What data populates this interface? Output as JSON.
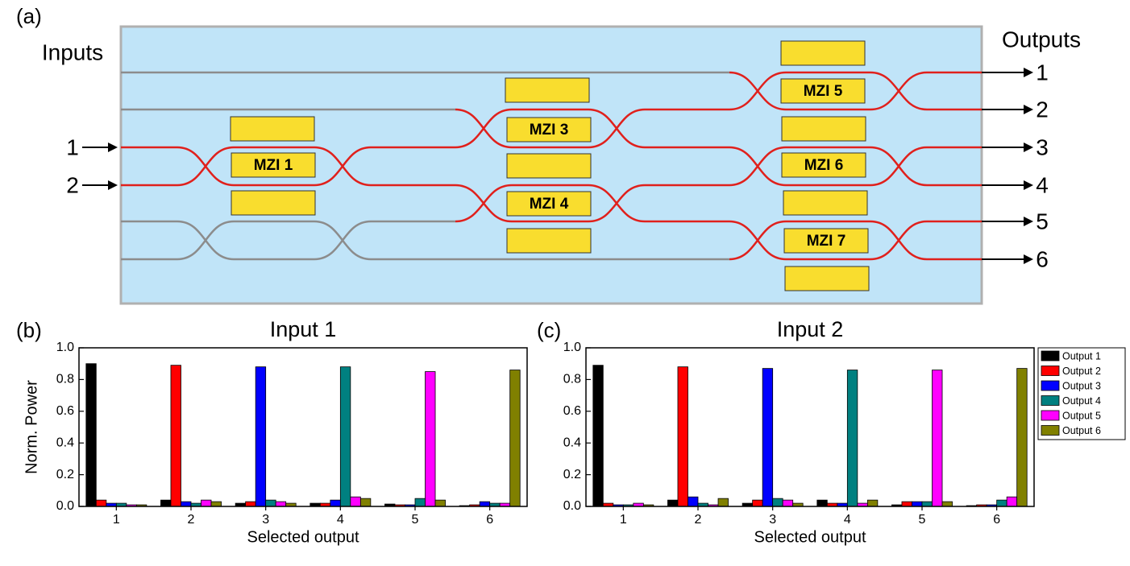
{
  "panels": [
    "(a)",
    "(b)",
    "(c)"
  ],
  "diagram": {
    "inputs_label": "Inputs",
    "outputs_label": "Outputs",
    "input_ports": [
      "1",
      "2"
    ],
    "output_ports": [
      "1",
      "2",
      "3",
      "4",
      "5",
      "6"
    ],
    "mzis": [
      "MZI 1",
      "MZI 3",
      "MZI 4",
      "MZI 5",
      "MZI 6",
      "MZI 7"
    ]
  },
  "chart_data": [
    {
      "type": "bar",
      "title": "Input 1",
      "x_label": "Selected output",
      "y_label": "Norm. Power",
      "categories": [
        "1",
        "2",
        "3",
        "4",
        "5",
        "6"
      ],
      "ylim": [
        0,
        1
      ],
      "yticks": [
        {
          "value": 0,
          "label": "0.0"
        },
        0.2,
        0.4,
        0.6,
        0.8,
        {
          "value": 1,
          "label": "1.0"
        }
      ],
      "series": [
        {
          "color": "#000000",
          "values": [
            0.9,
            0.04,
            0.02,
            0.02,
            0.015,
            0.005
          ]
        },
        {
          "color": "#ff0000",
          "values": [
            0.04,
            0.89,
            0.03,
            0.02,
            0.01,
            0.01
          ]
        },
        {
          "color": "#0000ff",
          "values": [
            0.02,
            0.03,
            0.88,
            0.04,
            0.01,
            0.03
          ]
        },
        {
          "color": "#008080",
          "values": [
            0.02,
            0.02,
            0.04,
            0.88,
            0.05,
            0.02
          ]
        },
        {
          "color": "#ff00ff",
          "values": [
            0.01,
            0.04,
            0.03,
            0.06,
            0.85,
            0.02
          ]
        },
        {
          "color": "#808000",
          "values": [
            0.01,
            0.03,
            0.02,
            0.05,
            0.04,
            0.86
          ]
        }
      ]
    },
    {
      "type": "bar",
      "title": "Input 2",
      "x_label": "Selected output",
      "y_label": "Norm. Power",
      "categories": [
        "1",
        "2",
        "3",
        "4",
        "5",
        "6"
      ],
      "legend": "outside-right",
      "ylim": [
        0,
        1
      ],
      "yticks": [
        {
          "value": 0,
          "label": "0.0"
        },
        0.2,
        0.4,
        0.6,
        0.8,
        {
          "value": 1,
          "label": "1.0"
        }
      ],
      "series": [
        {
          "name": "Output 1",
          "color": "#000000",
          "values": [
            0.89,
            0.04,
            0.02,
            0.04,
            0.01,
            0.005
          ]
        },
        {
          "name": "Output 2",
          "color": "#ff0000",
          "values": [
            0.02,
            0.88,
            0.04,
            0.02,
            0.03,
            0.01
          ]
        },
        {
          "name": "Output 3",
          "color": "#0000ff",
          "values": [
            0.01,
            0.06,
            0.87,
            0.02,
            0.03,
            0.01
          ]
        },
        {
          "name": "Output 4",
          "color": "#008080",
          "values": [
            0.01,
            0.02,
            0.05,
            0.86,
            0.03,
            0.04
          ]
        },
        {
          "name": "Output 5",
          "color": "#ff00ff",
          "values": [
            0.02,
            0.01,
            0.04,
            0.02,
            0.86,
            0.06
          ]
        },
        {
          "name": "Output 6",
          "color": "#808000",
          "values": [
            0.01,
            0.05,
            0.02,
            0.04,
            0.03,
            0.87
          ]
        }
      ]
    }
  ]
}
